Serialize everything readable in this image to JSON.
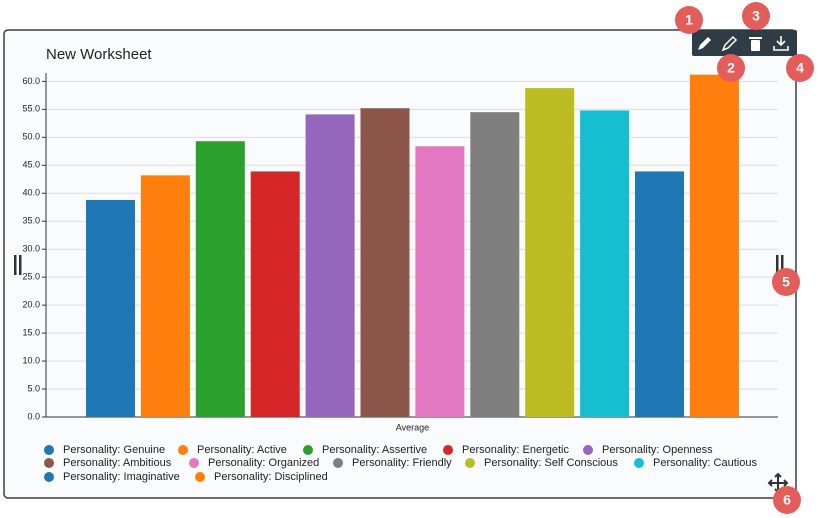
{
  "chart_data": {
    "type": "bar",
    "title": "New Worksheet",
    "categories": [
      "Average"
    ],
    "series": [
      {
        "name": "Personality: Genuine",
        "color": "#1f77b4",
        "values": [
          38.8
        ]
      },
      {
        "name": "Personality: Active",
        "color": "#ff7f0e",
        "values": [
          43.2
        ]
      },
      {
        "name": "Personality: Assertive",
        "color": "#2ca02c",
        "values": [
          49.3
        ]
      },
      {
        "name": "Personality: Energetic",
        "color": "#d62728",
        "values": [
          43.9
        ]
      },
      {
        "name": "Personality: Openness",
        "color": "#9467bd",
        "values": [
          54.1
        ]
      },
      {
        "name": "Personality: Ambitious",
        "color": "#8c564b",
        "values": [
          55.2
        ]
      },
      {
        "name": "Personality: Organized",
        "color": "#e377c2",
        "values": [
          48.4
        ]
      },
      {
        "name": "Personality: Friendly",
        "color": "#7f7f7f",
        "values": [
          54.5
        ]
      },
      {
        "name": "Personality: Self Conscious",
        "color": "#bcbd22",
        "values": [
          58.8
        ]
      },
      {
        "name": "Personality: Cautious",
        "color": "#17becf",
        "values": [
          54.8
        ]
      },
      {
        "name": "Personality: Imaginative",
        "color": "#1f77b4",
        "values": [
          43.9
        ]
      },
      {
        "name": "Personality: Disciplined",
        "color": "#ff7f0e",
        "values": [
          61.2
        ]
      }
    ],
    "ylim": [
      0,
      61.5
    ],
    "yticks": [
      {
        "value": 0,
        "label": "0.0"
      },
      {
        "value": 5,
        "label": "5.0"
      },
      {
        "value": 10,
        "label": "10.0"
      },
      {
        "value": 15,
        "label": "15.0"
      },
      {
        "value": 20,
        "label": "20.0"
      },
      {
        "value": 25,
        "label": "25.0"
      },
      {
        "value": 30,
        "label": "30.0"
      },
      {
        "value": 35,
        "label": "35.0"
      },
      {
        "value": 40,
        "label": "40.0"
      },
      {
        "value": 45,
        "label": "45.0"
      },
      {
        "value": 50,
        "label": "50.0"
      },
      {
        "value": 55,
        "label": "55.0"
      },
      {
        "value": 60,
        "label": "60.0"
      }
    ],
    "grid": true
  },
  "callouts": [
    1,
    2,
    3,
    4,
    5,
    6
  ]
}
